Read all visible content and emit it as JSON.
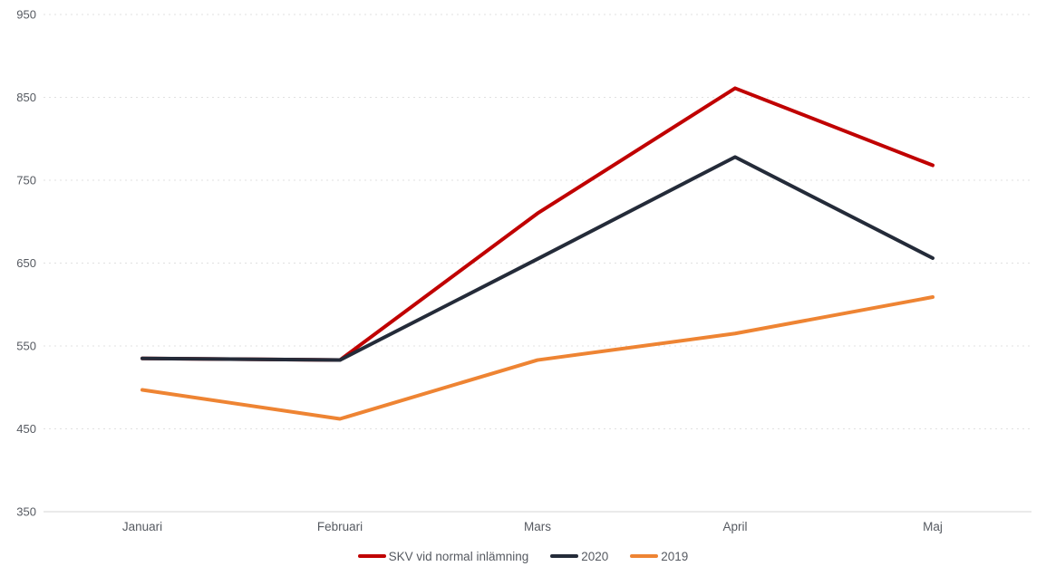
{
  "chart_data": {
    "type": "line",
    "categories": [
      "Januari",
      "Februari",
      "Mars",
      "April",
      "Maj"
    ],
    "series": [
      {
        "name": "SKV vid normal inlämning",
        "color": "#c00000",
        "values": [
          535,
          533,
          710,
          861,
          768
        ]
      },
      {
        "name": "2020",
        "color": "#242b39",
        "values": [
          535,
          533,
          655,
          778,
          656
        ]
      },
      {
        "name": "2019",
        "color": "#ee8433",
        "values": [
          497,
          462,
          533,
          565,
          609
        ]
      }
    ],
    "title": "",
    "xlabel": "",
    "ylabel": "",
    "ylim": [
      350,
      950
    ],
    "ytick_step": 100,
    "grid": "dashed-horizontal",
    "legend_position": "bottom-center"
  },
  "axis": {
    "yticks": [
      "950",
      "850",
      "750",
      "650",
      "550",
      "450",
      "350"
    ],
    "xticks": [
      "Januari",
      "Februari",
      "Mars",
      "April",
      "Maj"
    ]
  },
  "legend": {
    "items": [
      {
        "label": "SKV vid normal inlämning",
        "color": "#c00000"
      },
      {
        "label": "2020",
        "color": "#242b39"
      },
      {
        "label": "2019",
        "color": "#ee8433"
      }
    ]
  },
  "colors": {
    "background": "#ffffff",
    "grid": "#e1e1e1",
    "axis_line": "#d6d6d6",
    "tick_text": "#565a61"
  }
}
